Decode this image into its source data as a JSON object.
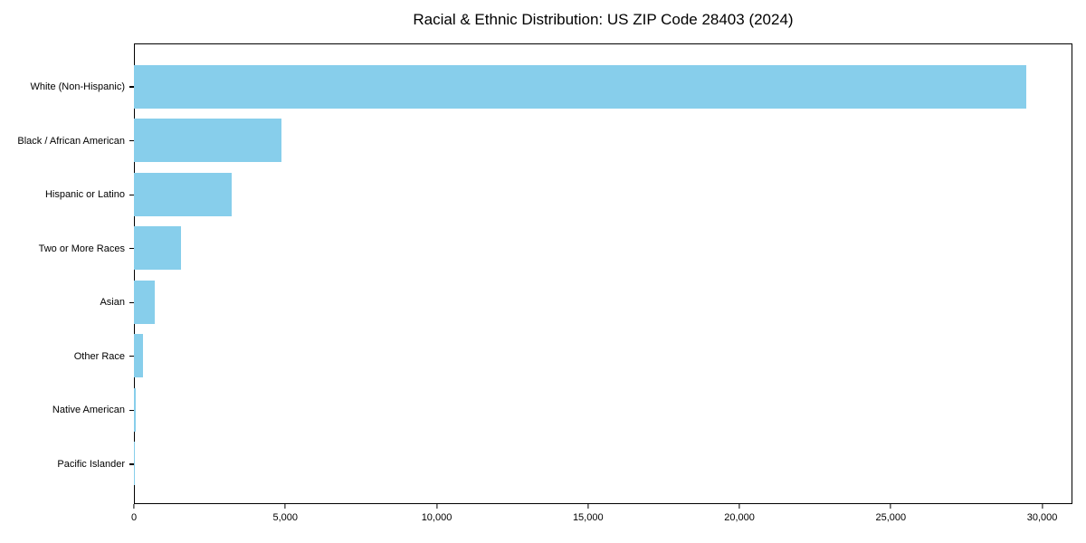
{
  "chart_data": {
    "type": "bar",
    "orientation": "horizontal",
    "title": "Racial & Ethnic Distribution: US ZIP Code 28403 (2024)",
    "categories": [
      "White (Non-Hispanic)",
      "Black / African American",
      "Hispanic or Latino",
      "Two or More Races",
      "Asian",
      "Other Race",
      "Native American",
      "Pacific Islander"
    ],
    "values": [
      29500,
      4900,
      3250,
      1580,
      690,
      300,
      85,
      25
    ],
    "xlabel": "",
    "ylabel": "",
    "xlim": [
      0,
      31000
    ],
    "x_ticks": [
      0,
      5000,
      10000,
      15000,
      20000,
      25000,
      30000
    ],
    "x_tick_labels": [
      "0",
      "5,000",
      "10,000",
      "15,000",
      "20,000",
      "25,000",
      "30,000"
    ],
    "bar_color": "#87CEEB",
    "frame_color": "#000000",
    "background_color": "#ffffff",
    "grid": false,
    "legend": "none"
  }
}
